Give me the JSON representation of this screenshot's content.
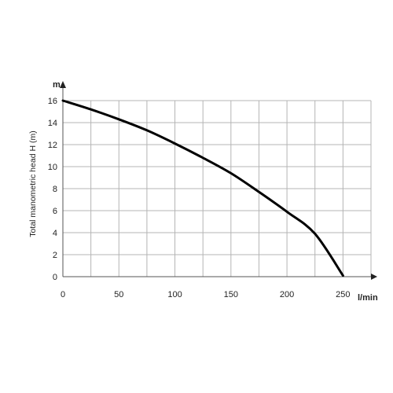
{
  "chart_data": {
    "type": "line",
    "title": "",
    "xlabel": "",
    "ylabel": "Total manometric head H (m)",
    "x_unit": "l/min",
    "y_unit": "m",
    "xlim": [
      0,
      275
    ],
    "ylim": [
      0,
      16
    ],
    "x_tick_labels": [
      "0",
      "50",
      "100",
      "150",
      "200",
      "250"
    ],
    "y_tick_labels": [
      "0",
      "2",
      "4",
      "6",
      "8",
      "10",
      "12",
      "14",
      "16"
    ],
    "grid": true,
    "series": [
      {
        "x": [
          0,
          25,
          50,
          75,
          100,
          125,
          150,
          175,
          200,
          225,
          250
        ],
        "y": [
          16.0,
          15.2,
          14.3,
          13.3,
          12.1,
          10.8,
          9.4,
          7.7,
          5.9,
          3.9,
          0.1
        ]
      }
    ],
    "colors": {
      "curve": "#000000",
      "grid": "#b4b4b4",
      "axis": "#555555"
    }
  }
}
